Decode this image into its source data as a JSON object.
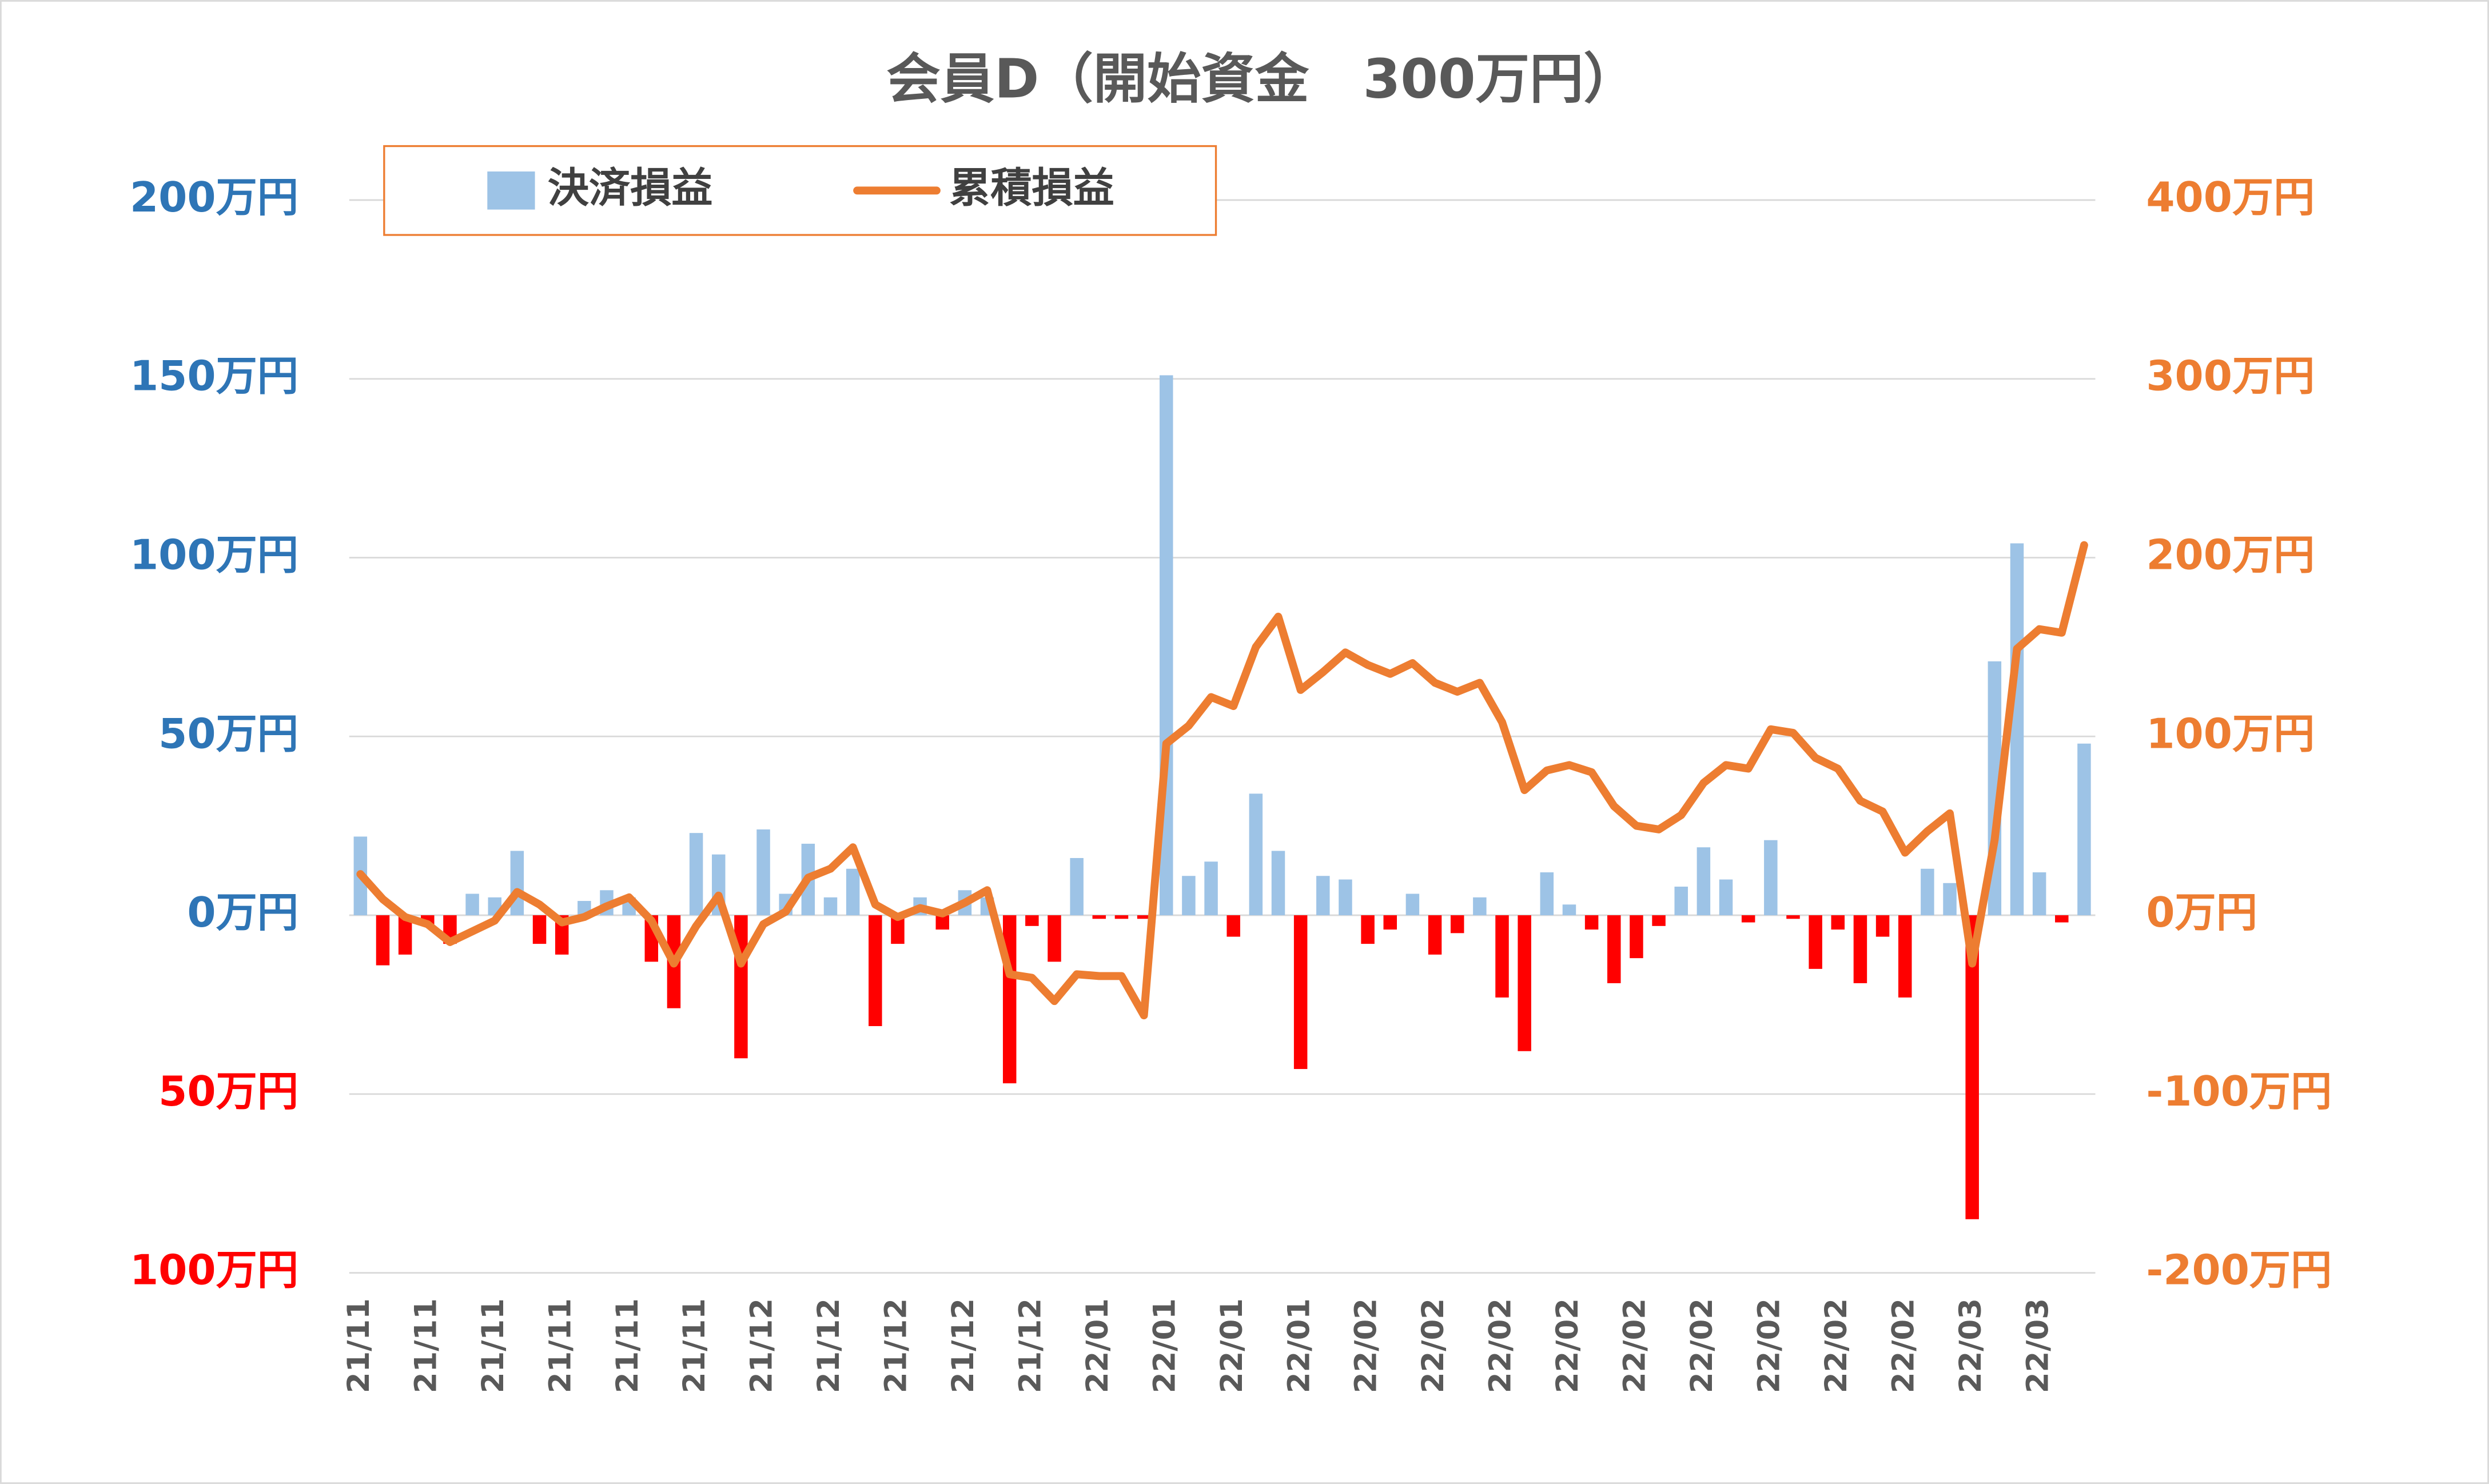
{
  "chart_data": {
    "type": "combo",
    "title": "会員D（開始資金　300万円）",
    "categories": [
      "21/11",
      null,
      null,
      "21/11",
      null,
      null,
      "21/11",
      null,
      null,
      "21/11",
      null,
      null,
      "21/11",
      null,
      null,
      "21/11",
      null,
      null,
      "21/12",
      null,
      null,
      "21/12",
      null,
      null,
      "21/12",
      null,
      null,
      "21/12",
      null,
      null,
      "21/12",
      null,
      null,
      "22/01",
      null,
      null,
      "22/01",
      null,
      null,
      "22/01",
      null,
      null,
      "22/01",
      null,
      null,
      "22/02",
      null,
      null,
      "22/02",
      null,
      null,
      "22/02",
      null,
      null,
      "22/02",
      null,
      null,
      "22/02",
      null,
      null,
      "22/02",
      null,
      null,
      "22/02",
      null,
      null,
      "22/02",
      null,
      null,
      "22/02",
      null,
      null,
      "22/03",
      null,
      null,
      "22/03",
      null,
      null
    ],
    "series": [
      {
        "name": "決済損益",
        "type": "bar",
        "color": "#9dc3e6",
        "negative_color": "#ff0000",
        "values": [
          22,
          -14,
          -11,
          -3,
          -8,
          6,
          5,
          18,
          -8,
          -11,
          4,
          7,
          5,
          -13,
          -26,
          23,
          17,
          -40,
          24,
          6,
          20,
          5,
          13,
          -31,
          -8,
          5,
          -4,
          7,
          5,
          -47,
          -3,
          -13,
          16,
          -1,
          -1,
          -1,
          151,
          11,
          15,
          -6,
          34,
          18,
          -43,
          11,
          10,
          -8,
          -4,
          6,
          -11,
          -5,
          5,
          -23,
          -38,
          12,
          3,
          -4,
          -19,
          -12,
          -3,
          8,
          19,
          10,
          -2,
          21,
          -1,
          -15,
          -4,
          -19,
          -6,
          -23,
          13,
          9,
          -85,
          71,
          104,
          12,
          -2,
          48
        ]
      },
      {
        "name": "累積損益",
        "type": "line",
        "axis": "y2",
        "color": "#ed7d31",
        "values": [
          23,
          9,
          -1,
          -5,
          -15,
          -9,
          -3,
          13,
          6,
          -4,
          -1,
          5,
          10,
          -3,
          -27,
          -6,
          11,
          -27,
          -5,
          2,
          21,
          26,
          38,
          6,
          -1,
          4,
          1,
          7,
          14,
          -33,
          -35,
          -48,
          -33,
          -34,
          -34,
          -56,
          96,
          106,
          122,
          117,
          150,
          167,
          126,
          136,
          147,
          140,
          135,
          141,
          130,
          125,
          130,
          108,
          70,
          81,
          84,
          80,
          61,
          50,
          48,
          56,
          74,
          84,
          82,
          104,
          102,
          88,
          82,
          64,
          58,
          35,
          47,
          57,
          -27,
          42,
          149,
          160,
          158,
          207
        ]
      }
    ],
    "ylim": [
      -100,
      200
    ],
    "yticks": [
      {
        "value": 200,
        "label": "200万円"
      },
      {
        "value": 150,
        "label": "150万円"
      },
      {
        "value": 100,
        "label": "100万円"
      },
      {
        "value": 50,
        "label": "50万円"
      },
      {
        "value": 0,
        "label": "0万円"
      },
      {
        "value": -50,
        "label": "50万円"
      },
      {
        "value": -100,
        "label": "100万円"
      }
    ],
    "y2lim": [
      -200,
      400
    ],
    "y2ticks": [
      {
        "value": 400,
        "label": "400万円"
      },
      {
        "value": 300,
        "label": "300万円"
      },
      {
        "value": 200,
        "label": "200万円"
      },
      {
        "value": 100,
        "label": "100万円"
      },
      {
        "value": 0,
        "label": "0万円"
      },
      {
        "value": -100,
        "label": "-100万円"
      },
      {
        "value": -200,
        "label": "-200万円"
      }
    ],
    "grid": true,
    "legend": "top-left"
  }
}
